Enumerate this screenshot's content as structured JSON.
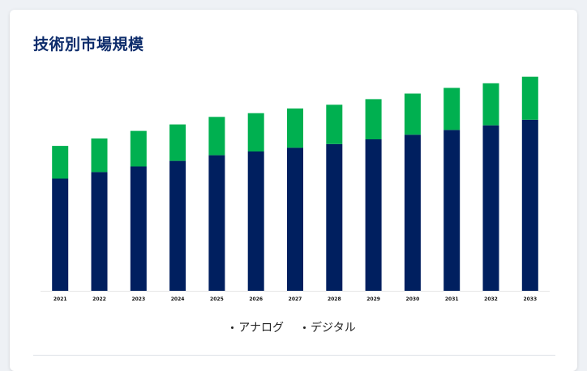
{
  "card": {
    "title": "技術別市場規模"
  },
  "legend": {
    "items": [
      "アナログ",
      "デジタル"
    ]
  },
  "chart_data": {
    "type": "bar",
    "stacked": true,
    "title": "技術別市場規模",
    "xlabel": "",
    "ylabel": "",
    "categories": [
      "2021",
      "2022",
      "2023",
      "2024",
      "2025",
      "2026",
      "2027",
      "2028",
      "2029",
      "2030",
      "2031",
      "2032",
      "2033"
    ],
    "series": [
      {
        "name": "アナログ",
        "color": "#001f5f",
        "values": [
          120,
          127,
          133,
          139,
          145,
          149,
          153,
          157,
          162,
          167,
          172,
          177,
          183
        ]
      },
      {
        "name": "デジタル",
        "color": "#00b050",
        "values": [
          35,
          36,
          38,
          39,
          41,
          41,
          42,
          42,
          43,
          44,
          45,
          45,
          46
        ]
      }
    ],
    "ylim": [
      0,
      240
    ],
    "grid": false,
    "legend_position": "bottom"
  }
}
